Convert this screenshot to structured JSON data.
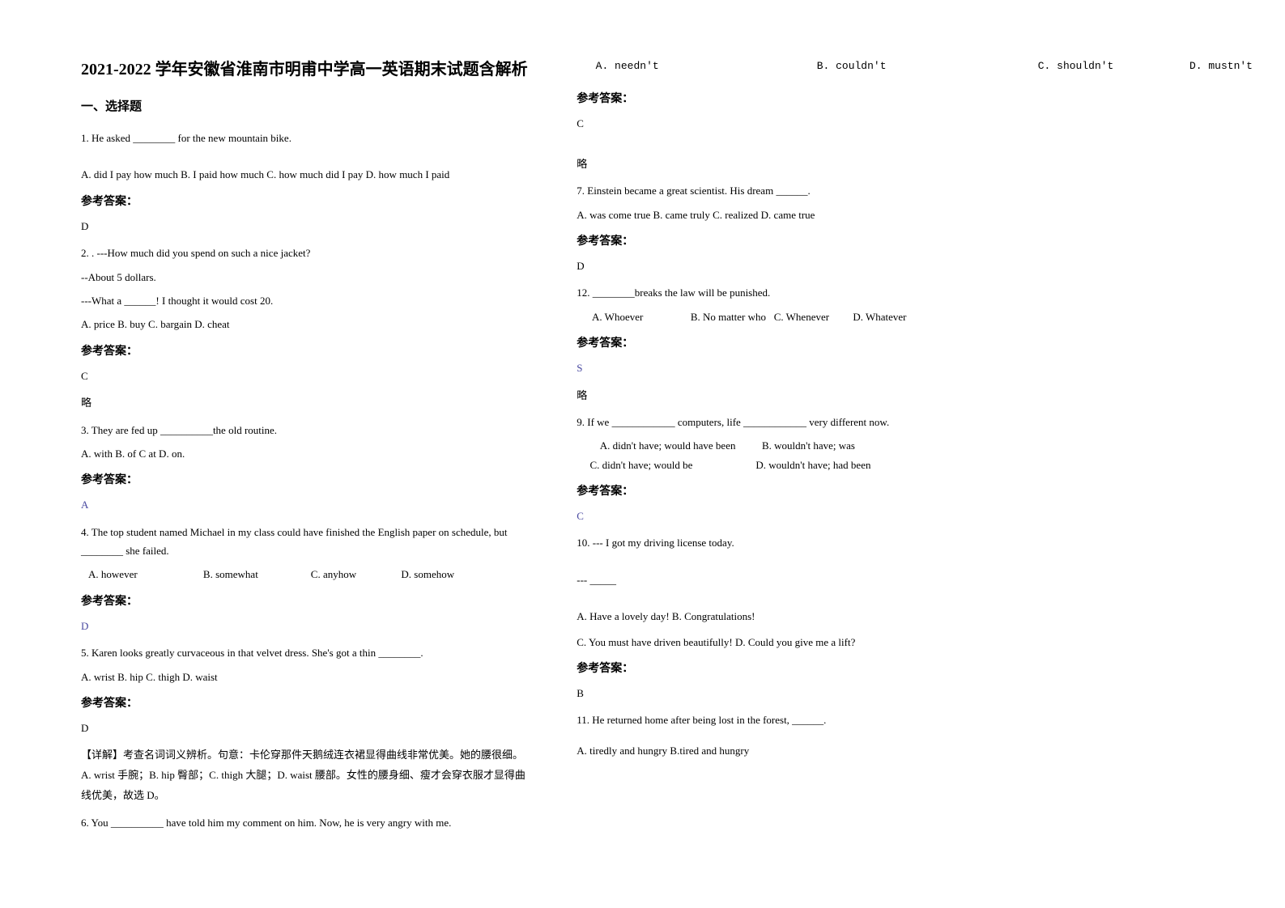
{
  "title": "2021-2022 学年安徽省淮南市明甫中学高一英语期末试题含解析",
  "section_header": "一、选择题",
  "left_column": {
    "q1": {
      "text": "1. He asked ________ for the new mountain bike.",
      "options": "A. did I pay how much  B. I paid how much  C. how much did I pay D. how much I paid",
      "answer_label": "参考答案：",
      "answer": "D"
    },
    "q2": {
      "line1": "2. . ---How much did you spend on such a nice jacket?",
      "line2": "--About 5 dollars.",
      "line3": "---What a ______! I thought it would cost 20.",
      "options": "A. price               B. buy         C. bargain         D. cheat",
      "answer_label": "参考答案：",
      "answer": "C",
      "note": "略"
    },
    "q3": {
      "text": "3. They are fed up __________the old routine.",
      "options": "A. with       B. of        C at        D. on.",
      "answer_label": "参考答案：",
      "answer": "A"
    },
    "q4": {
      "text": "4. The top student named Michael in my class could have finished the English paper on schedule, but ________ she failed.",
      "options": "   A. however                         B. somewhat                    C. anyhow                 D. somehow",
      "answer_label": "参考答案：",
      "answer": "D"
    },
    "q5": {
      "text": "5. Karen looks greatly curvaceous in that velvet dress. She's got a thin ________.",
      "options": "A. wrist B. hip   C. thigh D. waist",
      "answer_label": "参考答案：",
      "answer": "D",
      "explanation": "【详解】考查名词词义辨析。句意：卡伦穿那件天鹅绒连衣裙显得曲线非常优美。她的腰很细。 A. wrist 手腕；B. hip 臀部；C. thigh 大腿；D. waist 腰部。女性的腰身细、瘦才会穿衣服才显得曲线优美，故选 D。"
    },
    "q6": {
      "text": "6. You __________ have told him my comment on him. Now, he is very angry with me."
    }
  },
  "right_column": {
    "q6_options": {
      "line1": "   A. needn't                         B. couldn't                        C. shouldn't            D. mustn't",
      "answer_label": "参考答案：",
      "answer": "C",
      "note": "略"
    },
    "q7": {
      "text": "    7. Einstein became a great scientist. His dream ______.",
      "options": "   A. was come true  B. came truly  C. realized  D. came true",
      "answer_label": "参考答案：",
      "answer": "D"
    },
    "q12": {
      "text": "12. ________breaks the law will be punished.",
      "options": "      A. Whoever                  B. No matter who   C. Whenever         D. Whatever",
      "answer_label": "参考答案：",
      "answer": "S",
      "note": "略"
    },
    "q9": {
      "text": "9. If we ____________ computers, life ____________ very different now.",
      "options1": "         A. didn't have; would have been          B. wouldn't have; was",
      "options2": "     C. didn't have; would be                        D. wouldn't have; had been",
      "answer_label": "参考答案：",
      "answer": "C"
    },
    "q10": {
      "line1": "10. --- I got my driving license today.",
      "line2": "--- _____",
      "options1": "A. Have a lovely day!             B. Congratulations!",
      "options2": "C. You must have driven beautifully!    D. Could you give me a lift?",
      "answer_label": "参考答案：",
      "answer": "B"
    },
    "q11": {
      "text": "11. He returned home after being lost in the forest, ______.",
      "options": "A. tiredly and hungry  B.tired and hungry"
    }
  }
}
